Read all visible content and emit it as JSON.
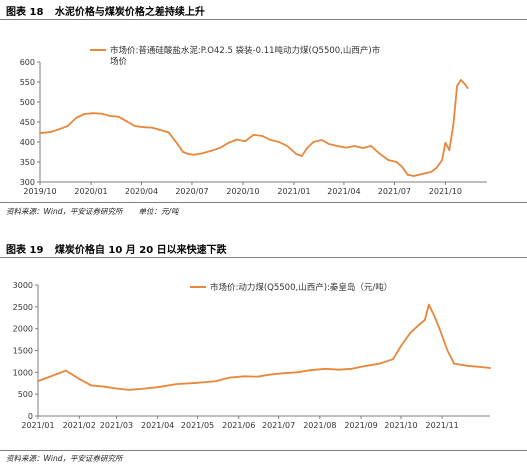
{
  "figures": [
    {
      "caption_label": "图表 18",
      "caption_title": "水泥价格与煤炭价格之差持续上升",
      "source_text": "资料来源：Wind，平安证券研究所",
      "unit_text": "单位：元/吨"
    },
    {
      "caption_label": "图表 19",
      "caption_title": "煤炭价格自 10 月 20 日以来快速下跌",
      "source_text": "资料来源：Wind，平安证券研究所",
      "unit_text": ""
    }
  ],
  "chart_data": [
    {
      "type": "line",
      "title": "",
      "xlabel": "",
      "ylabel": "",
      "ylim": [
        300,
        600
      ],
      "yticks": [
        300,
        350,
        400,
        450,
        500,
        550,
        600
      ],
      "xticks": [
        {
          "date": "2019-10-01",
          "label": "2019/10"
        },
        {
          "date": "2020-01-01",
          "label": "2020/01"
        },
        {
          "date": "2020-04-01",
          "label": "2020/04"
        },
        {
          "date": "2020-07-01",
          "label": "2020/07"
        },
        {
          "date": "2020-10-01",
          "label": "2020/10"
        },
        {
          "date": "2021-01-01",
          "label": "2021/01"
        },
        {
          "date": "2021-04-01",
          "label": "2021/04"
        },
        {
          "date": "2021-07-01",
          "label": "2021/07"
        },
        {
          "date": "2021-10-01",
          "label": "2021/10"
        }
      ],
      "xrange": [
        "2019-10-01",
        "2021-12-15"
      ],
      "grid": false,
      "legend_position": "top-left",
      "color": "#E8863A",
      "series": [
        {
          "name": "市场价:普通硅酸盐水泥:P.O42.5 袋装-0.11吨动力煤(Q5500,山西产)市场价",
          "x": [
            "2019-10-01",
            "2019-10-20",
            "2019-11-05",
            "2019-11-20",
            "2019-12-05",
            "2019-12-20",
            "2020-01-05",
            "2020-01-20",
            "2020-02-05",
            "2020-02-20",
            "2020-03-05",
            "2020-03-20",
            "2020-04-05",
            "2020-04-20",
            "2020-05-05",
            "2020-05-20",
            "2020-06-05",
            "2020-06-15",
            "2020-06-25",
            "2020-07-05",
            "2020-07-20",
            "2020-08-05",
            "2020-08-20",
            "2020-09-05",
            "2020-09-20",
            "2020-10-05",
            "2020-10-20",
            "2020-11-05",
            "2020-11-20",
            "2020-12-05",
            "2020-12-20",
            "2021-01-05",
            "2021-01-15",
            "2021-01-25",
            "2021-02-05",
            "2021-02-20",
            "2021-03-05",
            "2021-03-20",
            "2021-04-05",
            "2021-04-20",
            "2021-05-05",
            "2021-05-20",
            "2021-06-05",
            "2021-06-20",
            "2021-07-05",
            "2021-07-15",
            "2021-07-25",
            "2021-08-05",
            "2021-08-20",
            "2021-09-05",
            "2021-09-15",
            "2021-09-25",
            "2021-10-01",
            "2021-10-08",
            "2021-10-15",
            "2021-10-22",
            "2021-10-29",
            "2021-11-05",
            "2021-11-10"
          ],
          "y": [
            422,
            425,
            432,
            440,
            460,
            470,
            472,
            471,
            465,
            463,
            452,
            440,
            437,
            436,
            430,
            424,
            395,
            375,
            370,
            368,
            372,
            378,
            385,
            398,
            406,
            402,
            418,
            415,
            405,
            400,
            390,
            370,
            365,
            385,
            400,
            405,
            395,
            390,
            386,
            390,
            385,
            390,
            370,
            355,
            350,
            338,
            318,
            315,
            320,
            325,
            335,
            355,
            398,
            380,
            440,
            540,
            555,
            545,
            535
          ]
        }
      ]
    },
    {
      "type": "line",
      "title": "",
      "xlabel": "",
      "ylabel": "",
      "ylim": [
        0,
        3000
      ],
      "yticks": [
        0,
        500,
        1000,
        1500,
        2000,
        2500,
        3000
      ],
      "xticks": [
        {
          "date": "2021-01-01",
          "label": "2021/01"
        },
        {
          "date": "2021-02-01",
          "label": "2021/02"
        },
        {
          "date": "2021-03-01",
          "label": "2021/03"
        },
        {
          "date": "2021-04-01",
          "label": "2021/04"
        },
        {
          "date": "2021-05-01",
          "label": "2021/05"
        },
        {
          "date": "2021-06-01",
          "label": "2021/06"
        },
        {
          "date": "2021-07-01",
          "label": "2021/07"
        },
        {
          "date": "2021-08-01",
          "label": "2021/08"
        },
        {
          "date": "2021-09-01",
          "label": "2021/09"
        },
        {
          "date": "2021-10-01",
          "label": "2021/10"
        },
        {
          "date": "2021-11-01",
          "label": "2021/11"
        }
      ],
      "xrange": [
        "2021-01-01",
        "2021-12-07"
      ],
      "grid": false,
      "legend_position": "top-center",
      "color": "#E8863A",
      "series": [
        {
          "name": "市场价:动力煤(Q5500,山西产):秦皇岛（元/吨）",
          "x": [
            "2021-01-01",
            "2021-01-08",
            "2021-01-15",
            "2021-01-22",
            "2021-02-01",
            "2021-02-10",
            "2021-02-20",
            "2021-03-01",
            "2021-03-10",
            "2021-03-20",
            "2021-04-01",
            "2021-04-15",
            "2021-05-01",
            "2021-05-15",
            "2021-05-25",
            "2021-06-05",
            "2021-06-15",
            "2021-06-25",
            "2021-07-05",
            "2021-07-15",
            "2021-07-25",
            "2021-08-05",
            "2021-08-15",
            "2021-08-25",
            "2021-09-05",
            "2021-09-15",
            "2021-09-25",
            "2021-10-01",
            "2021-10-08",
            "2021-10-15",
            "2021-10-19",
            "2021-10-22",
            "2021-10-26",
            "2021-10-30",
            "2021-11-05",
            "2021-11-10",
            "2021-11-20",
            "2021-12-01",
            "2021-12-07"
          ],
          "y": [
            800,
            880,
            960,
            1040,
            850,
            700,
            670,
            630,
            600,
            620,
            660,
            730,
            760,
            800,
            880,
            910,
            900,
            950,
            980,
            1000,
            1050,
            1080,
            1060,
            1080,
            1150,
            1200,
            1300,
            1600,
            1900,
            2100,
            2200,
            2550,
            2300,
            2000,
            1500,
            1200,
            1150,
            1120,
            1100
          ]
        }
      ]
    }
  ]
}
